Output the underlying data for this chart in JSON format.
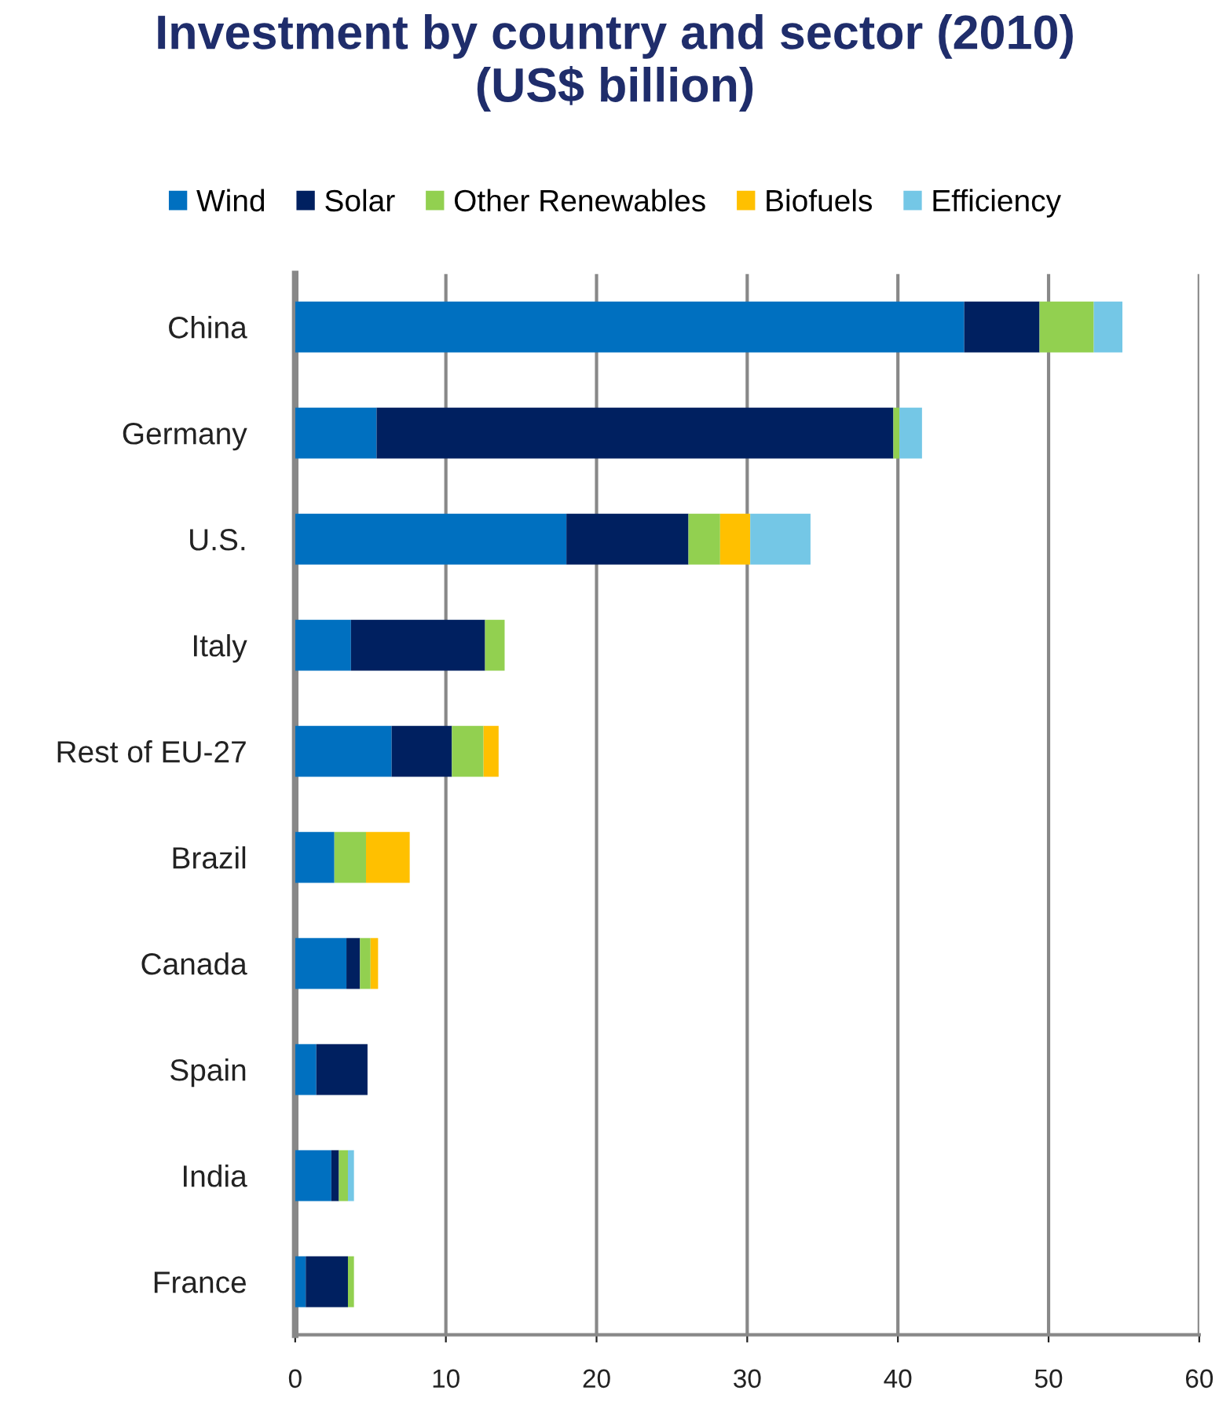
{
  "chart_data": {
    "type": "bar",
    "orientation": "horizontal",
    "stacked": true,
    "title": "Investment by country and sector (2010)\n(US$ billion)",
    "categories": [
      "China",
      "Germany",
      "U.S.",
      "Italy",
      "Rest of EU-27",
      "Brazil",
      "Canada",
      "Spain",
      "India",
      "France"
    ],
    "series": [
      {
        "name": "Wind",
        "color": "#0070c0",
        "values": [
          44.4,
          5.4,
          18.0,
          3.7,
          6.4,
          2.6,
          3.4,
          1.4,
          2.4,
          0.7
        ]
      },
      {
        "name": "Solar",
        "color": "#002060",
        "values": [
          5.0,
          34.3,
          8.1,
          8.9,
          4.0,
          0,
          0.9,
          3.4,
          0.5,
          2.8
        ]
      },
      {
        "name": "Other Renewables",
        "color": "#92d050",
        "values": [
          3.6,
          0.4,
          2.1,
          1.3,
          2.1,
          2.1,
          0.7,
          0,
          0.6,
          0.4
        ]
      },
      {
        "name": "Biofuels",
        "color": "#ffc000",
        "values": [
          0,
          0,
          2.0,
          0,
          1.0,
          2.9,
          0.5,
          0,
          0,
          0
        ]
      },
      {
        "name": "Efficiency",
        "color": "#74c7e6",
        "values": [
          1.9,
          1.5,
          4.0,
          0,
          0,
          0,
          0,
          0,
          0.4,
          0
        ]
      }
    ],
    "xlim": [
      0,
      60
    ],
    "xticks": [
      0,
      10,
      20,
      30,
      40,
      50,
      60
    ],
    "grid": "x",
    "legend": "top"
  }
}
